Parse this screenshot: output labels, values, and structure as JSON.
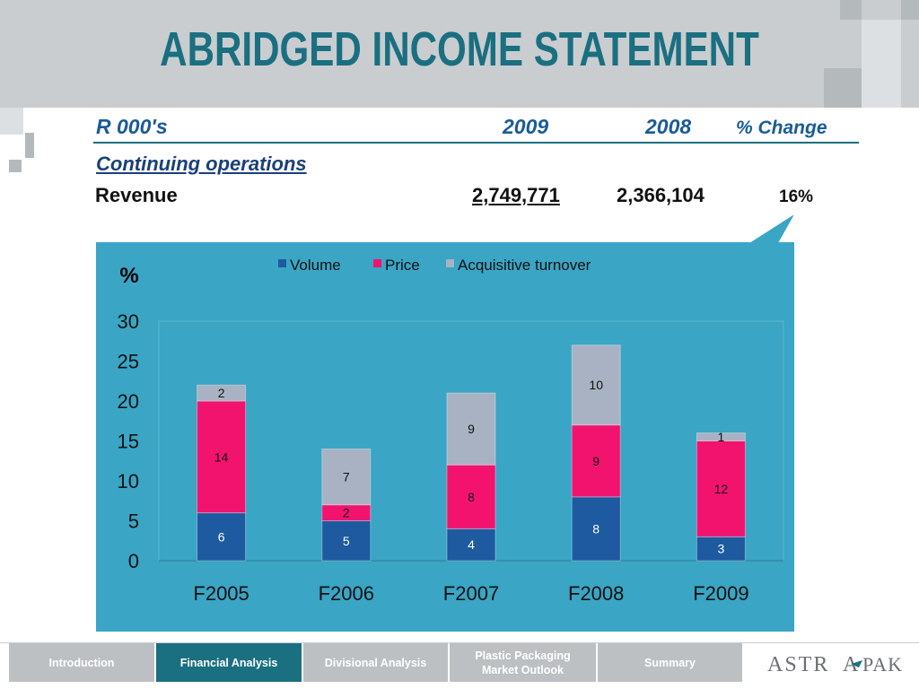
{
  "title": "ABRIDGED INCOME STATEMENT",
  "table": {
    "col_label": "R 000's",
    "col_2009": "2009",
    "col_2008": "2008",
    "col_change": "% Change",
    "section": "Continuing operations",
    "row_label": "Revenue",
    "val_2009": "2,749,771",
    "val_2008": "2,366,104",
    "change": "16%"
  },
  "colors": {
    "accent": "#1a6f80",
    "chart_bg": "#3aa5c4",
    "volume": "#1d5aa0",
    "price": "#f2136f",
    "acquisitive": "#a8b2c2"
  },
  "chart_data": {
    "type": "bar",
    "stacked": true,
    "unit_label": "%",
    "categories": [
      "F2005",
      "F2006",
      "F2007",
      "F2008",
      "F2009"
    ],
    "series": [
      {
        "name": "Volume",
        "values": [
          6,
          5,
          4,
          8,
          3
        ]
      },
      {
        "name": "Price",
        "values": [
          14,
          2,
          8,
          9,
          12
        ]
      },
      {
        "name": "Acquisitive turnover",
        "values": [
          2,
          7,
          9,
          10,
          1
        ]
      }
    ],
    "ylim": [
      0,
      30
    ],
    "yticks": [
      "0",
      "5",
      "10",
      "15",
      "20",
      "25",
      "30"
    ],
    "legend": "top",
    "grid": false
  },
  "nav": {
    "items": [
      {
        "label": "Introduction",
        "active": false
      },
      {
        "label": "Financial Analysis",
        "active": true
      },
      {
        "label": "Divisional Analysis",
        "active": false
      },
      {
        "label": "Plastic Packaging Market Outlook",
        "active": false
      },
      {
        "label": "Summary",
        "active": false
      }
    ]
  },
  "logo": {
    "text": "ASTRAPAK"
  }
}
